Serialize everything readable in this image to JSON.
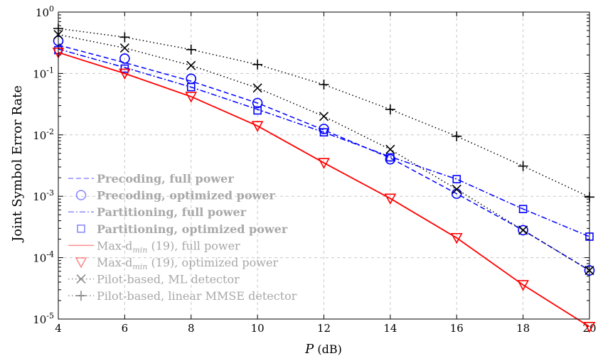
{
  "chart_data": {
    "type": "line",
    "xlabel": "P (dB)",
    "ylabel": "Joint Symbol Error Rate",
    "y_scale": "log",
    "xlim": [
      4,
      20
    ],
    "ylim": [
      1e-05,
      1
    ],
    "grid": true,
    "legend_position": "bottom-left",
    "x_ticks": [
      "4",
      "6",
      "8",
      "10",
      "12",
      "14",
      "16",
      "18",
      "20"
    ],
    "y_ticks": [
      {
        "base": "10",
        "exp": "0",
        "value": 1
      },
      {
        "base": "10",
        "exp": "-1",
        "value": 0.1
      },
      {
        "base": "10",
        "exp": "-2",
        "value": 0.01
      },
      {
        "base": "10",
        "exp": "-3",
        "value": 0.001
      },
      {
        "base": "10",
        "exp": "-4",
        "value": 0.0001
      },
      {
        "base": "10",
        "exp": "-5",
        "value": 1e-05
      }
    ],
    "series": [
      {
        "name": "Precoding, full power",
        "color": "#0000ff",
        "dash": "dashed",
        "marker": "none",
        "bold": true,
        "x": [
          4,
          6,
          8,
          10,
          12,
          14,
          16,
          18,
          20
        ],
        "y": [
          0.29,
          0.15,
          0.075,
          0.033,
          0.012,
          0.0042,
          0.0011,
          0.00028,
          6.2e-05
        ]
      },
      {
        "name": "Precoding, optimized power",
        "color": "#0000ff",
        "dash": "none",
        "marker": "circle",
        "bold": true,
        "x": [
          4,
          6,
          8,
          10,
          12,
          14,
          16,
          18,
          20
        ],
        "y": [
          0.34,
          0.175,
          0.082,
          0.033,
          0.0125,
          0.004,
          0.0011,
          0.00028,
          6.2e-05
        ]
      },
      {
        "name": "Partitioning, full power",
        "color": "#0000ff",
        "dash": "dashdot",
        "marker": "none",
        "bold": true,
        "x": [
          4,
          6,
          8,
          10,
          12,
          14,
          16,
          18,
          20
        ],
        "y": [
          0.25,
          0.125,
          0.06,
          0.026,
          0.011,
          0.0044,
          0.0019,
          0.00062,
          0.00022
        ]
      },
      {
        "name": "Partitioning, optimized power",
        "color": "#0000ff",
        "dash": "none",
        "marker": "square",
        "bold": true,
        "x": [
          4,
          6,
          8,
          10,
          12,
          14,
          16,
          18,
          20
        ],
        "y": [
          0.24,
          0.12,
          0.06,
          0.025,
          0.011,
          0.0043,
          0.0019,
          0.00062,
          0.00022
        ]
      },
      {
        "name": "Max-d",
        "name_sub": "min",
        "name_suffix": " (19), full power",
        "color": "#ff0000",
        "dash": "solid",
        "marker": "none",
        "bold": false,
        "x": [
          4,
          6,
          8,
          10,
          12,
          14,
          16,
          18,
          20
        ],
        "y": [
          0.22,
          0.1,
          0.042,
          0.014,
          0.0035,
          0.00092,
          0.00021,
          3.6e-05,
          7.5e-06
        ]
      },
      {
        "name": "Max-d",
        "name_sub": "min",
        "name_suffix": " (19), optimized power",
        "color": "#ff0000",
        "dash": "none",
        "marker": "triangle",
        "bold": false,
        "x": [
          4,
          6,
          8,
          10,
          12,
          14,
          16,
          18,
          20
        ],
        "y": [
          0.22,
          0.1,
          0.042,
          0.014,
          0.0035,
          0.00092,
          0.00021,
          3.6e-05,
          7.5e-06
        ]
      },
      {
        "name": "Pilot-based, ML detector",
        "color": "#000000",
        "dash": "dotted",
        "marker": "x",
        "bold": false,
        "x": [
          4,
          6,
          8,
          10,
          12,
          14,
          16,
          18,
          20
        ],
        "y": [
          0.43,
          0.26,
          0.135,
          0.058,
          0.02,
          0.0058,
          0.0013,
          0.00028,
          6.2e-05
        ]
      },
      {
        "name": "Pilot-based, linear MMSE detector",
        "color": "#000000",
        "dash": "dotted",
        "marker": "plus",
        "bold": false,
        "x": [
          4,
          6,
          8,
          10,
          12,
          14,
          16,
          18,
          20
        ],
        "y": [
          0.54,
          0.39,
          0.245,
          0.14,
          0.066,
          0.026,
          0.0095,
          0.0031,
          0.00097
        ]
      }
    ]
  }
}
